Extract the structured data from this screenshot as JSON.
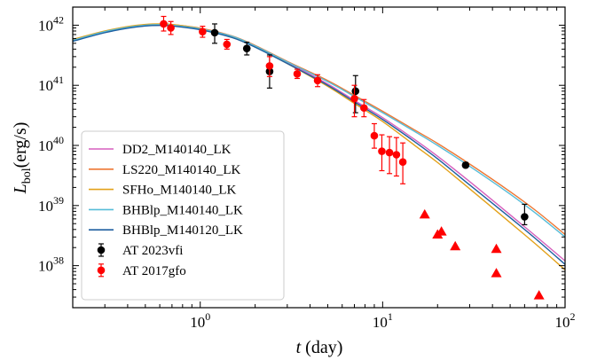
{
  "chart_data": {
    "type": "scatter",
    "title": "",
    "xlabel": "t (day)",
    "ylabel": "L_bol(erg/s)",
    "xscale": "log",
    "yscale": "log",
    "xlim": [
      0.2,
      100
    ],
    "ylim": [
      2e+37,
      2e+42
    ],
    "grid": false,
    "legend_position": "lower-left",
    "x_tick_labels": [
      {
        "base": "10",
        "exp": "0",
        "value": 1
      },
      {
        "base": "10",
        "exp": "1",
        "value": 10
      },
      {
        "base": "10",
        "exp": "2",
        "value": 100
      }
    ],
    "y_tick_labels": [
      {
        "base": "10",
        "exp": "38",
        "value": 1e+38
      },
      {
        "base": "10",
        "exp": "39",
        "value": 1e+39
      },
      {
        "base": "10",
        "exp": "40",
        "value": 1e+40
      },
      {
        "base": "10",
        "exp": "41",
        "value": 1e+41
      },
      {
        "base": "10",
        "exp": "42",
        "value": 1e+42
      }
    ],
    "model_x": [
      0.2,
      0.3,
      0.4,
      0.5,
      0.6,
      0.7,
      1.0,
      1.5,
      2.0,
      3.0,
      5.0,
      7.0,
      10.0,
      15.0,
      20.0,
      30.0,
      50.0,
      70.0,
      100.0
    ],
    "series": [
      {
        "name": "DD2_M140140_LK",
        "color": "#d65fbd",
        "y": [
          5.5e+41,
          7.6e+41,
          9e+41,
          9.8e+41,
          1e+42,
          9.8e+41,
          8.6e+41,
          6.4e+41,
          4.5e+41,
          2.4e+41,
          1.05e+41,
          5.6e+40,
          2.9e+40,
          1.25e+40,
          6.6e+39,
          2.5e+39,
          7e+38,
          3e+38,
          1.2e+38
        ]
      },
      {
        "name": "LS220_M140140_LK",
        "color": "#ee7733",
        "y": [
          5.7e+41,
          7.9e+41,
          9.4e+41,
          1.02e+42,
          1.04e+42,
          1.02e+42,
          8.9e+41,
          6.6e+41,
          4.6e+41,
          2.5e+41,
          1.2e+41,
          6.8e+40,
          3.7e+40,
          1.8e+40,
          1.08e+40,
          4.9e+39,
          1.7e+39,
          8e+38,
          3.3e+38
        ]
      },
      {
        "name": "SFHo_M140140_LK",
        "color": "#e3a11a",
        "y": [
          5.8e+41,
          8e+41,
          9.5e+41,
          1.03e+42,
          1.05e+42,
          1.03e+42,
          8.8e+41,
          6.3e+41,
          4.4e+41,
          2.3e+41,
          9.6e+40,
          5e+40,
          2.5e+40,
          1e+40,
          5.2e+39,
          1.9e+39,
          5.2e+38,
          2.2e+38,
          8.5e+37
        ]
      },
      {
        "name": "BHBlp_M140140_LK",
        "color": "#56bcd8",
        "y": [
          5.6e+41,
          7.8e+41,
          9.2e+41,
          1e+42,
          1.02e+42,
          1e+42,
          8.7e+41,
          6.5e+41,
          4.5e+41,
          2.45e+41,
          1.15e+41,
          6.5e+40,
          3.5e+40,
          1.7e+40,
          1e+40,
          4.5e+39,
          1.55e+39,
          7.2e+38,
          3e+38
        ]
      },
      {
        "name": "BHBlp_M140120_LK",
        "color": "#1f5fa0",
        "y": [
          5.4e+41,
          7.5e+41,
          8.9e+41,
          9.7e+41,
          9.9e+41,
          9.7e+41,
          8.4e+41,
          6.2e+41,
          4.3e+41,
          2.3e+41,
          1e+41,
          5.3e+40,
          2.7e+40,
          1.15e+40,
          6e+39,
          2.2e+39,
          6.3e+38,
          2.7e+38,
          1.05e+38
        ]
      }
    ],
    "observations": [
      {
        "name": "AT 2023vfi",
        "color": "#000000",
        "marker": "circle",
        "points": [
          {
            "x": 1.2,
            "y": 7.5e+41,
            "lo": 5e+41,
            "hi": 1.05e+42
          },
          {
            "x": 1.8,
            "y": 4.1e+41,
            "lo": 3.2e+41,
            "hi": 5.2e+41
          },
          {
            "x": 2.4,
            "y": 1.7e+41,
            "lo": 9e+40,
            "hi": 3.2e+41
          },
          {
            "x": 7.1,
            "y": 8e+40,
            "lo": 3.5e+40,
            "hi": 1.45e+41
          },
          {
            "x": 28.5,
            "y": 4.7e+39,
            "lo": 4.3e+39,
            "hi": 5.2e+39
          },
          {
            "x": 60.0,
            "y": 6.5e+38,
            "lo": 4.8e+38,
            "hi": 1.05e+39
          }
        ]
      },
      {
        "name": "AT 2017gfo",
        "color": "#ff0000",
        "marker": "circle",
        "points": [
          {
            "x": 0.63,
            "y": 1.05e+42,
            "lo": 8e+41,
            "hi": 1.4e+42
          },
          {
            "x": 0.69,
            "y": 9e+41,
            "lo": 7e+41,
            "hi": 1.15e+42
          },
          {
            "x": 1.03,
            "y": 7.8e+41,
            "lo": 6.3e+41,
            "hi": 9.6e+41
          },
          {
            "x": 1.4,
            "y": 4.8e+41,
            "lo": 4e+41,
            "hi": 5.8e+41
          },
          {
            "x": 2.4,
            "y": 2.1e+41,
            "lo": 1.4e+41,
            "hi": 3e+41
          },
          {
            "x": 3.4,
            "y": 1.55e+41,
            "lo": 1.3e+41,
            "hi": 1.85e+41
          },
          {
            "x": 4.4,
            "y": 1.2e+41,
            "lo": 9.5e+40,
            "hi": 1.5e+41
          },
          {
            "x": 7.0,
            "y": 6e+40,
            "lo": 3e+40,
            "hi": 1e+41
          },
          {
            "x": 7.9,
            "y": 4.2e+40,
            "lo": 3e+40,
            "hi": 5.8e+40
          },
          {
            "x": 9.0,
            "y": 1.45e+40,
            "lo": 9e+39,
            "hi": 2.3e+40
          },
          {
            "x": 9.9,
            "y": 8e+39,
            "lo": 3.8e+39,
            "hi": 1.5e+40
          },
          {
            "x": 10.9,
            "y": 7.6e+39,
            "lo": 3.4e+39,
            "hi": 1.4e+40
          },
          {
            "x": 11.9,
            "y": 7e+39,
            "lo": 3.1e+39,
            "hi": 1.35e+40
          },
          {
            "x": 12.9,
            "y": 5.3e+39,
            "lo": 2.3e+39,
            "hi": 1.1e+40
          }
        ]
      },
      {
        "name": "AT 2017gfo upper limits",
        "color": "#ff0000",
        "marker": "triangle",
        "legend": false,
        "points": [
          {
            "x": 17.0,
            "y": 7.1e+38
          },
          {
            "x": 20.0,
            "y": 3.3e+38
          },
          {
            "x": 21.0,
            "y": 3.7e+38
          },
          {
            "x": 25.0,
            "y": 2.1e+38
          },
          {
            "x": 42.0,
            "y": 1.9e+38
          },
          {
            "x": 42.0,
            "y": 7.5e+37
          },
          {
            "x": 72.0,
            "y": 3.2e+37
          }
        ]
      }
    ]
  }
}
